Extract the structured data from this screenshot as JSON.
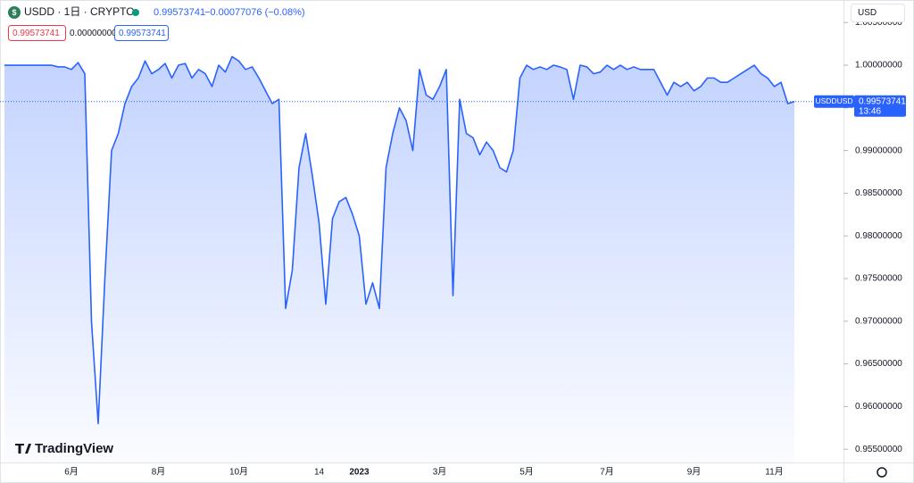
{
  "chart_data": {
    "type": "area",
    "legend": {
      "symbol": "USDD · 1日 · CRYPTO",
      "price": "0.99573741",
      "change": "−0.00077076 (−0.08%)"
    },
    "inputs": [
      "0.99573741",
      "0.00000000",
      "0.99573741"
    ],
    "currency": "USD",
    "brand": "TradingView",
    "price_tag": {
      "name": "USDDUSD",
      "value": 0.99573741,
      "countdown": "13:46"
    },
    "color": "#2962ff",
    "categories": [
      null,
      null,
      null,
      null,
      null,
      null,
      null,
      null,
      null,
      null,
      "6月",
      null,
      null,
      null,
      null,
      null,
      null,
      null,
      null,
      null,
      null,
      null,
      null,
      "8月",
      null,
      null,
      null,
      null,
      null,
      null,
      null,
      null,
      null,
      null,
      null,
      "10月",
      null,
      null,
      null,
      null,
      null,
      null,
      null,
      null,
      null,
      null,
      null,
      "14",
      null,
      null,
      null,
      null,
      null,
      "2023",
      null,
      null,
      null,
      null,
      null,
      null,
      null,
      null,
      null,
      null,
      null,
      "3月",
      null,
      null,
      null,
      null,
      null,
      null,
      null,
      null,
      null,
      null,
      null,
      null,
      "5月",
      null,
      null,
      null,
      null,
      null,
      null,
      null,
      null,
      null,
      null,
      null,
      "7月",
      null,
      null,
      null,
      null,
      null,
      null,
      null,
      null,
      null,
      null,
      null,
      null,
      "9月",
      null,
      null,
      null,
      null,
      null,
      null,
      null,
      null,
      null,
      null,
      null,
      "11月",
      null,
      null,
      null
    ],
    "values": [
      1.0,
      1.0,
      1.0,
      1.0,
      1.0,
      1.0,
      1.0,
      1.0,
      0.9998,
      0.9998,
      0.9995,
      1.0003,
      0.999,
      0.97,
      0.958,
      0.975,
      0.99,
      0.992,
      0.9955,
      0.9975,
      0.9985,
      1.0005,
      0.999,
      0.9995,
      1.0002,
      0.9985,
      1.0,
      1.0002,
      0.9985,
      0.9995,
      0.999,
      0.9975,
      1.0,
      0.9992,
      1.001,
      1.0005,
      0.9995,
      0.9998,
      0.9985,
      0.997,
      0.9955,
      0.996,
      0.9715,
      0.976,
      0.988,
      0.992,
      0.987,
      0.9815,
      0.972,
      0.982,
      0.984,
      0.9845,
      0.9825,
      0.98,
      0.972,
      0.9745,
      0.9715,
      0.988,
      0.992,
      0.995,
      0.9935,
      0.99,
      0.9995,
      0.9965,
      0.996,
      0.9975,
      0.9995,
      0.973,
      0.996,
      0.992,
      0.9915,
      0.9895,
      0.991,
      0.99,
      0.988,
      0.9875,
      0.99,
      0.9985,
      1.0,
      0.9995,
      0.9998,
      0.9995,
      1.0,
      0.9998,
      0.9995,
      0.996,
      1.0,
      0.9998,
      0.999,
      0.9992,
      1.0,
      0.9995,
      1.0,
      0.9995,
      0.9998,
      0.9995,
      0.9995,
      0.9995,
      0.998,
      0.9965,
      0.998,
      0.9975,
      0.998,
      0.997,
      0.9975,
      0.9985,
      0.9985,
      0.998,
      0.998,
      0.9985,
      0.999,
      0.9995,
      1.0,
      0.999,
      0.9985,
      0.9975,
      0.998,
      0.9955,
      0.99573741
    ],
    "ylim": [
      0.95345,
      1.00764
    ],
    "yticks": [
      {
        "value": 1.005,
        "label": "1.00500000"
      },
      {
        "value": 1.0,
        "label": "1.00000000"
      },
      {
        "value": 0.995,
        "label": "0.99500000"
      },
      {
        "value": 0.99,
        "label": "0.99000000"
      },
      {
        "value": 0.985,
        "label": "0.98500000"
      },
      {
        "value": 0.98,
        "label": "0.98000000"
      },
      {
        "value": 0.975,
        "label": "0.97500000"
      },
      {
        "value": 0.97,
        "label": "0.97000000"
      },
      {
        "value": 0.965,
        "label": "0.96500000"
      },
      {
        "value": 0.96,
        "label": "0.96000000"
      },
      {
        "value": 0.955,
        "label": "0.95500000"
      }
    ]
  }
}
